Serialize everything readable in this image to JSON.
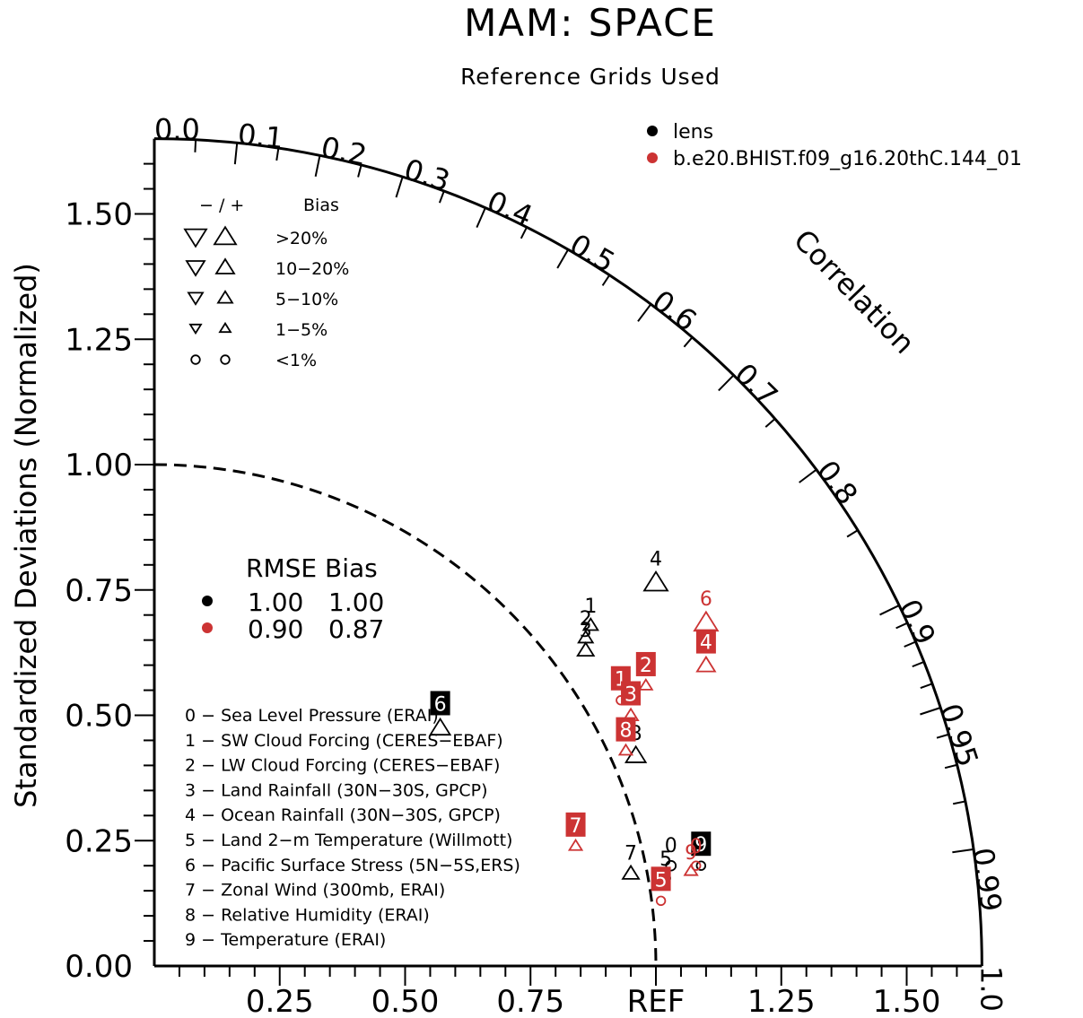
{
  "title": "MAM: SPACE",
  "subtitle": "Reference Grids Used",
  "chart_data": {
    "type": "scatter",
    "subtype": "taylor-diagram",
    "ylabel": "Standardized Deviations (Normalized)",
    "correlation_label": "Correlation",
    "ref_label": "REF",
    "std_max": 1.65,
    "ref_std": 1.0,
    "y_ticks": [
      {
        "v": 0.0,
        "label": "0.00"
      },
      {
        "v": 0.25,
        "label": "0.25"
      },
      {
        "v": 0.5,
        "label": "0.50"
      },
      {
        "v": 0.75,
        "label": "0.75"
      },
      {
        "v": 1.0,
        "label": "1.00"
      },
      {
        "v": 1.25,
        "label": "1.25"
      },
      {
        "v": 1.5,
        "label": "1.50"
      }
    ],
    "x_ticks": [
      {
        "v": 0.25,
        "label": "0.25"
      },
      {
        "v": 0.5,
        "label": "0.50"
      },
      {
        "v": 0.75,
        "label": "0.75"
      },
      {
        "v": 1.0,
        "label": "REF"
      },
      {
        "v": 1.25,
        "label": "1.25"
      },
      {
        "v": 1.5,
        "label": "1.50"
      }
    ],
    "corr_labels": [
      {
        "v": 0.0,
        "label": "0.0"
      },
      {
        "v": 0.1,
        "label": "0.1"
      },
      {
        "v": 0.2,
        "label": "0.2"
      },
      {
        "v": 0.3,
        "label": "0.3"
      },
      {
        "v": 0.4,
        "label": "0.4"
      },
      {
        "v": 0.5,
        "label": "0.5"
      },
      {
        "v": 0.6,
        "label": "0.6"
      },
      {
        "v": 0.7,
        "label": "0.7"
      },
      {
        "v": 0.8,
        "label": "0.8"
      },
      {
        "v": 0.9,
        "label": "0.9"
      },
      {
        "v": 0.95,
        "label": "0.95"
      },
      {
        "v": 0.99,
        "label": "0.99"
      },
      {
        "v": 1.0,
        "label": "1.0"
      }
    ],
    "series": [
      {
        "name": "lens",
        "color": "#000000",
        "label_bg": "#000000",
        "rmse": "1.00",
        "bias": "1.00",
        "points": [
          {
            "id": "0",
            "x": 1.03,
            "y": 0.2,
            "marker": "circle",
            "size": 9,
            "label": "plain"
          },
          {
            "id": "1",
            "x": 0.87,
            "y": 0.68,
            "marker": "up",
            "size": 8,
            "label": "plain"
          },
          {
            "id": "2",
            "x": 0.86,
            "y": 0.655,
            "marker": "up",
            "size": 8,
            "label": "plain"
          },
          {
            "id": "3",
            "x": 0.86,
            "y": 0.63,
            "marker": "up",
            "size": 9,
            "label": "plain"
          },
          {
            "id": "4",
            "x": 1.0,
            "y": 0.765,
            "marker": "up",
            "size": 13,
            "label": "plain"
          },
          {
            "id": "5",
            "x": 1.02,
            "y": 0.175,
            "marker": "circle",
            "size": 8,
            "label": "plain"
          },
          {
            "id": "6",
            "x": 0.57,
            "y": 0.475,
            "marker": "up",
            "size": 11,
            "label": "box"
          },
          {
            "id": "7",
            "x": 0.95,
            "y": 0.185,
            "marker": "up",
            "size": 9,
            "label": "plain"
          },
          {
            "id": "8",
            "x": 0.96,
            "y": 0.42,
            "marker": "up",
            "size": 11,
            "label": "plain"
          },
          {
            "id": "9",
            "x": 1.09,
            "y": 0.2,
            "marker": "circle",
            "size": 8,
            "label": "box"
          }
        ]
      },
      {
        "name": "b.e20.BHIST.f09_g16.20thC.144_01",
        "color": "#cc3333",
        "label_bg": "#cc3333",
        "rmse": "0.90",
        "bias": "0.87",
        "points": [
          {
            "id": "0",
            "x": 1.08,
            "y": 0.2,
            "marker": "circle",
            "size": 8,
            "label": "plain"
          },
          {
            "id": "1",
            "x": 0.93,
            "y": 0.53,
            "marker": "circle",
            "size": 8,
            "label": "box"
          },
          {
            "id": "2",
            "x": 0.98,
            "y": 0.56,
            "marker": "up",
            "size": 7,
            "label": "box"
          },
          {
            "id": "3",
            "x": 0.95,
            "y": 0.5,
            "marker": "up",
            "size": 8,
            "label": "box"
          },
          {
            "id": "4",
            "x": 1.1,
            "y": 0.6,
            "marker": "up",
            "size": 10,
            "label": "box"
          },
          {
            "id": "5",
            "x": 1.01,
            "y": 0.13,
            "marker": "circle",
            "size": 8,
            "label": "box"
          },
          {
            "id": "6",
            "x": 1.1,
            "y": 0.685,
            "marker": "up",
            "size": 13,
            "label": "plain"
          },
          {
            "id": "7",
            "x": 0.84,
            "y": 0.24,
            "marker": "up",
            "size": 7,
            "label": "box"
          },
          {
            "id": "8",
            "x": 0.94,
            "y": 0.43,
            "marker": "up",
            "size": 7,
            "label": "box"
          },
          {
            "id": "9",
            "x": 1.07,
            "y": 0.19,
            "marker": "up",
            "size": 7,
            "label": "plain"
          }
        ]
      }
    ],
    "bias_legend": {
      "header_sign": "− / +",
      "header_bias": "Bias",
      "rows": [
        {
          "label": ">20%",
          "size": 12,
          "shape": "triangle"
        },
        {
          "label": "10−20%",
          "size": 10,
          "shape": "triangle"
        },
        {
          "label": "5−10%",
          "size": 8,
          "shape": "triangle"
        },
        {
          "label": "1−5%",
          "size": 6,
          "shape": "triangle"
        },
        {
          "label": "<1%",
          "size": 8,
          "shape": "circle"
        }
      ]
    },
    "rmse_legend": {
      "header": "RMSE Bias"
    },
    "variables": [
      "0 − Sea Level Pressure (ERAI)",
      "1 − SW Cloud Forcing (CERES−EBAF)",
      "2 − LW Cloud Forcing (CERES−EBAF)",
      "3 − Land Rainfall (30N−30S, GPCP)",
      "4 − Ocean Rainfall (30N−30S, GPCP)",
      "5 − Land 2−m Temperature (Willmott)",
      "6 − Pacific Surface Stress (5N−5S,ERS)",
      "7 − Zonal Wind (300mb, ERAI)",
      "8 − Relative Humidity (ERAI)",
      "9 − Temperature (ERAI)"
    ]
  }
}
